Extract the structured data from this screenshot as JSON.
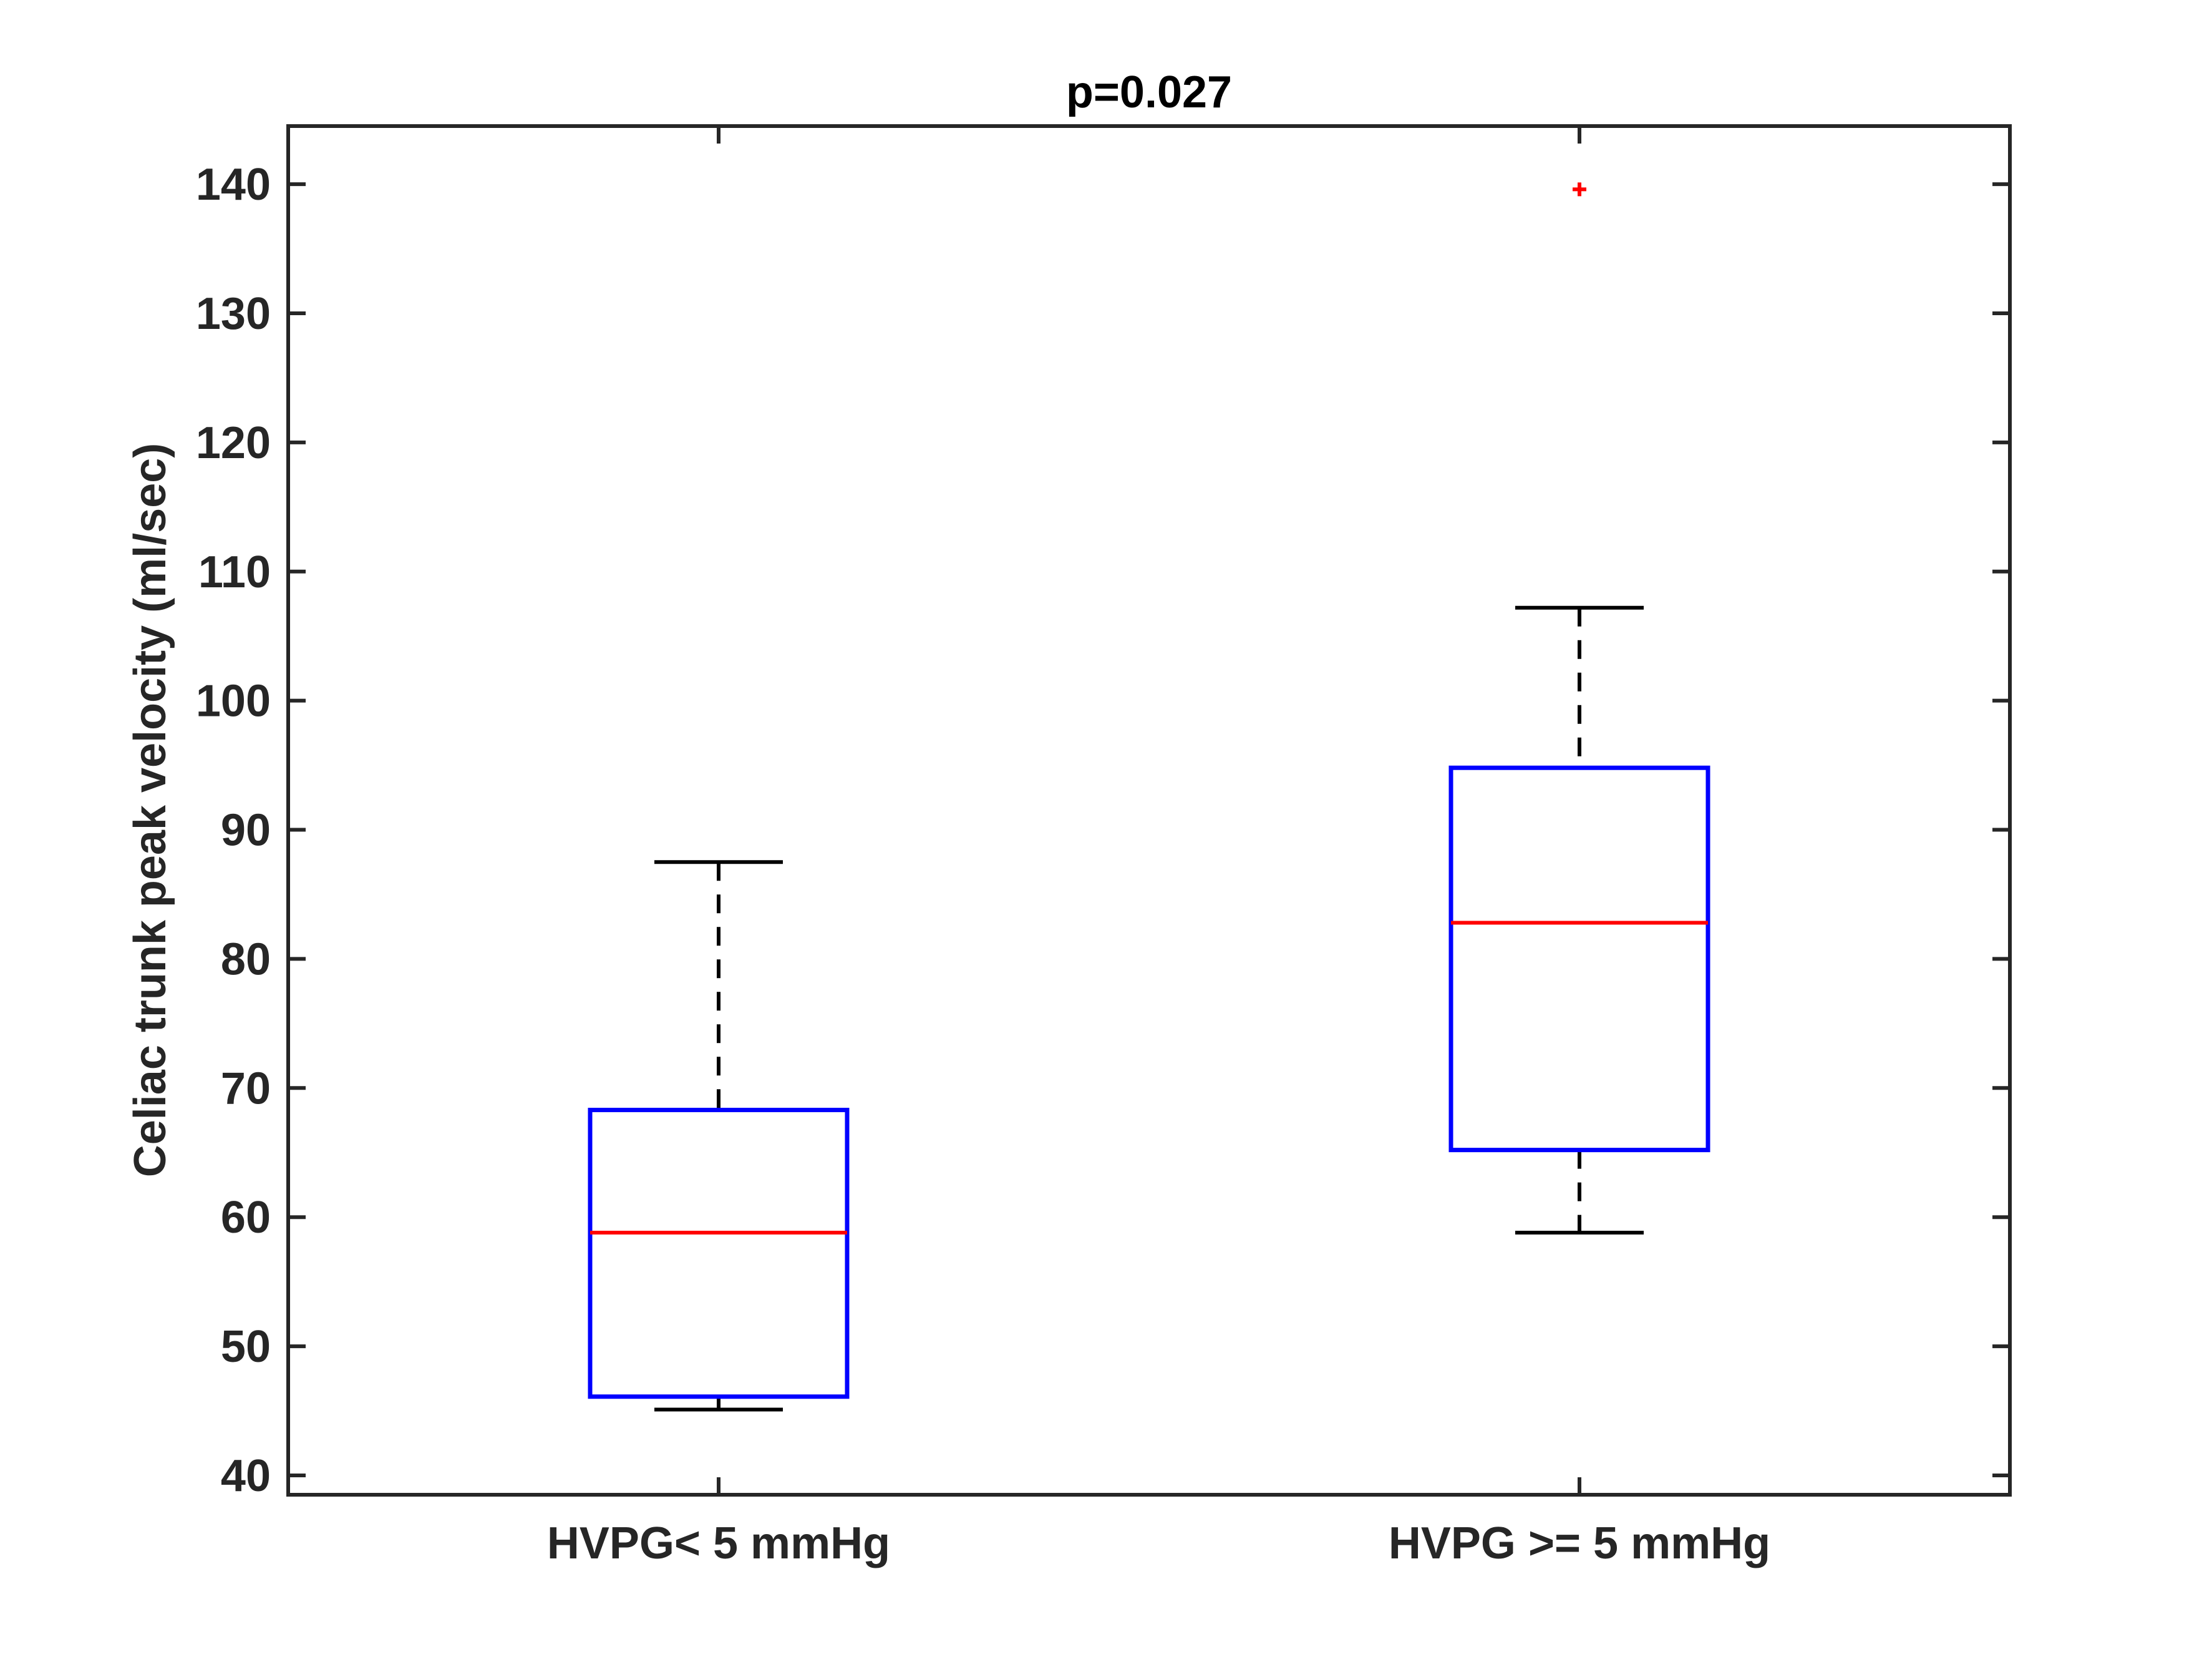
{
  "chart_data": {
    "type": "box",
    "title": "p=0.027",
    "xlabel": "",
    "ylabel": "Celiac trunk peak velocity (ml/sec)",
    "ylim": [
      38.5,
      144.5
    ],
    "yticks": [
      40,
      50,
      60,
      70,
      80,
      90,
      100,
      110,
      120,
      130,
      140
    ],
    "categories": [
      "HVPG< 5 mmHg",
      "HVPG >= 5 mmHg"
    ],
    "boxes": [
      {
        "whisker_low": 45.1,
        "q1": 46.1,
        "median": 58.8,
        "q3": 68.3,
        "whisker_high": 87.5,
        "outliers": []
      },
      {
        "whisker_low": 58.8,
        "q1": 65.2,
        "median": 82.8,
        "q3": 94.8,
        "whisker_high": 107.2,
        "outliers": [
          139.6
        ]
      }
    ],
    "grid": false,
    "colors": {
      "box": "#0000ff",
      "median": "#ff0000",
      "whisker": "#000000",
      "outlier": "#ff0000",
      "axes": "#262626"
    }
  }
}
